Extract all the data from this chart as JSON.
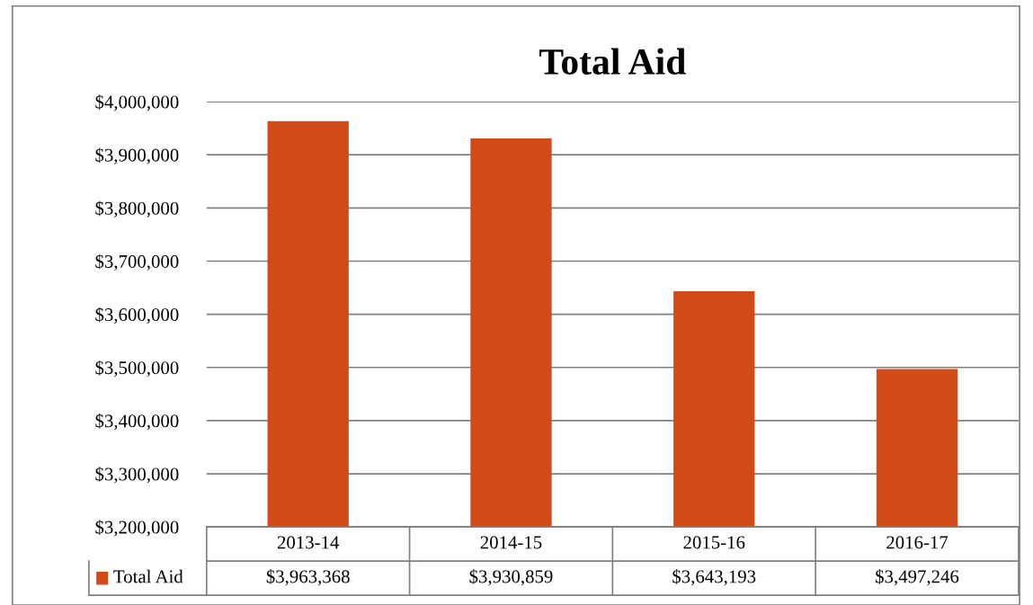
{
  "chart_data": {
    "type": "bar",
    "title": "Total Aid",
    "categories": [
      "2013-14",
      "2014-15",
      "2015-16",
      "2016-17"
    ],
    "series": [
      {
        "name": "Total Aid",
        "color": "#d24a17",
        "values": [
          3963368,
          3930859,
          3643193,
          3497246
        ],
        "value_labels": [
          "$3,963,368",
          "$3,930,859",
          "$3,643,193",
          "$3,497,246"
        ]
      }
    ],
    "ylim": [
      3200000,
      4000000
    ],
    "yticks": [
      {
        "value": 3200000,
        "label": "$3,200,000"
      },
      {
        "value": 3300000,
        "label": "$3,300,000"
      },
      {
        "value": 3400000,
        "label": "$3,400,000"
      },
      {
        "value": 3500000,
        "label": "$3,500,000"
      },
      {
        "value": 3600000,
        "label": "$3,600,000"
      },
      {
        "value": 3700000,
        "label": "$3,700,000"
      },
      {
        "value": 3800000,
        "label": "$3,800,000"
      },
      {
        "value": 3900000,
        "label": "$3,900,000"
      },
      {
        "value": 4000000,
        "label": "$4,000,000"
      }
    ],
    "grid": "y",
    "legend": "bottom"
  }
}
